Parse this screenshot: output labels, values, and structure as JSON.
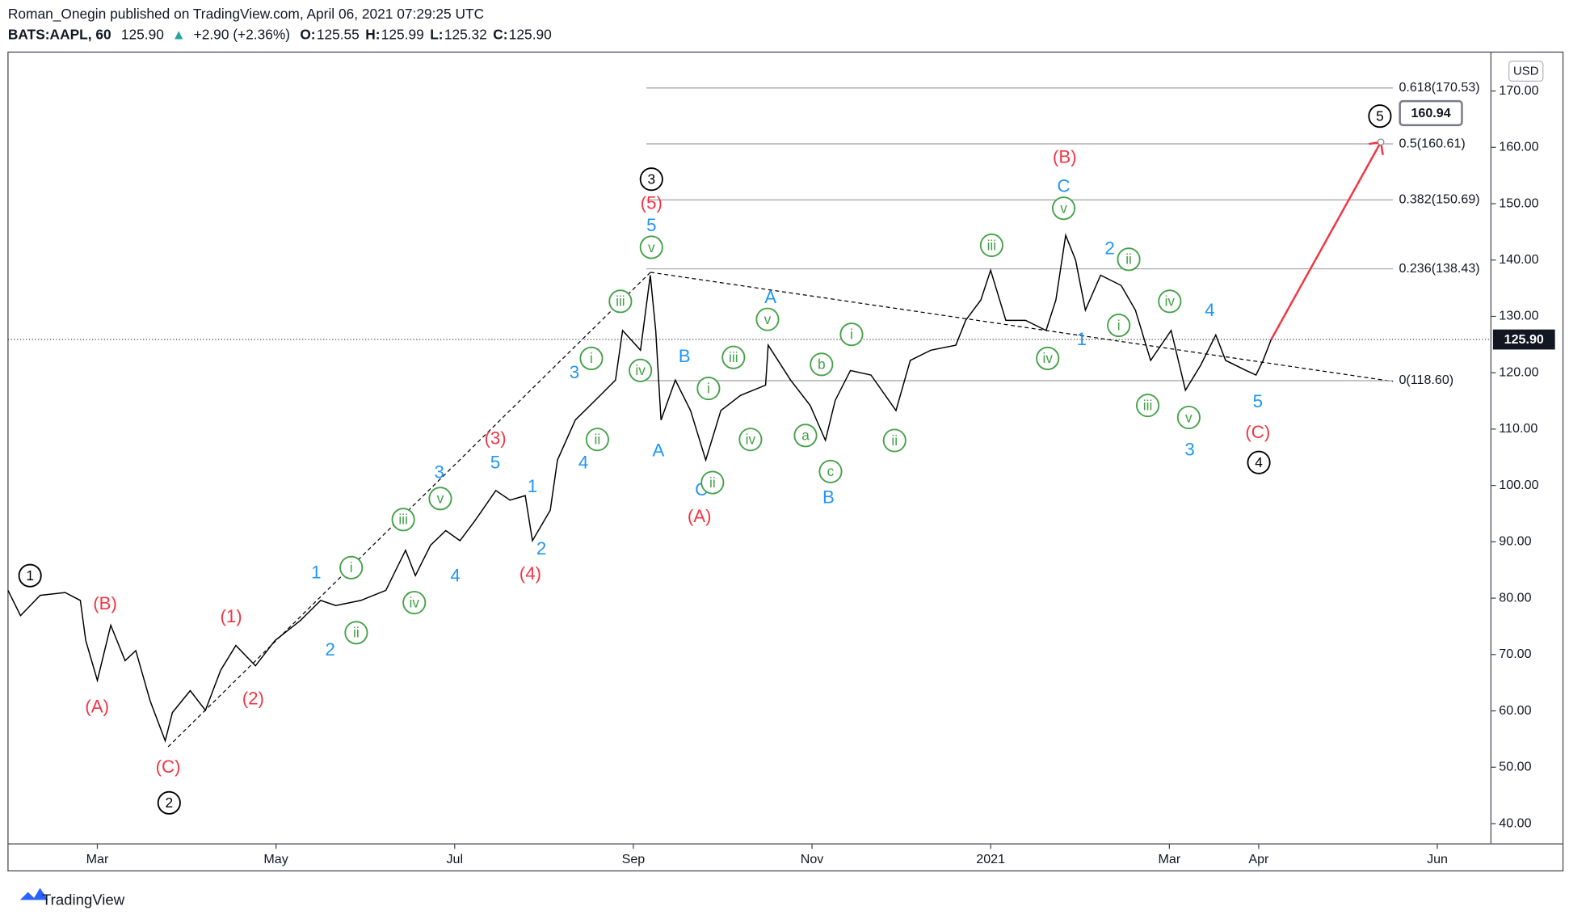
{
  "header": {
    "author_line": "Roman_Onegin published on TradingView.com, April 06, 2021 07:29:25 UTC",
    "symbol": "BATS:AAPL, 60",
    "price": "125.90",
    "change_arrow": "▲",
    "change": "+2.90 (+2.36%)",
    "ohlc": [
      {
        "label": "O:",
        "value": "125.55"
      },
      {
        "label": "H:",
        "value": "125.99"
      },
      {
        "label": "L:",
        "value": "125.32"
      },
      {
        "label": "C:",
        "value": "125.90"
      }
    ],
    "logo": "TradingView"
  },
  "chart_data": {
    "type": "line",
    "color": "#000000",
    "currency": "USD",
    "x": [
      1.0,
      1.14,
      1.36,
      1.64,
      1.81,
      1.87,
      2.0,
      2.15,
      2.31,
      2.43,
      2.59,
      2.76,
      2.84,
      3.04,
      3.21,
      3.38,
      3.55,
      3.77,
      3.99,
      4.27,
      4.5,
      4.67,
      4.95,
      5.23,
      5.45,
      5.56,
      5.73,
      5.9,
      6.06,
      6.23,
      6.46,
      6.62,
      6.79,
      6.87,
      7.07,
      7.15,
      7.35,
      7.63,
      7.8,
      7.88,
      8.08,
      8.19,
      8.25,
      8.31,
      8.47,
      8.64,
      8.81,
      8.98,
      9.2,
      9.48,
      9.51,
      9.76,
      9.98,
      10.15,
      10.26,
      10.43,
      10.66,
      10.94,
      11.1,
      11.33,
      11.61,
      11.72,
      11.89,
      12.0,
      12.17,
      12.39,
      12.62,
      12.73,
      12.84,
      12.95,
      13.06,
      13.23,
      13.46,
      13.62,
      13.79,
      14.02,
      14.18,
      14.35,
      14.52,
      14.63,
      14.86,
      14.97,
      15.05,
      15.14
    ],
    "values": [
      81.4,
      76.9,
      80.5,
      81.0,
      79.6,
      72.5,
      65.4,
      75.2,
      68.9,
      70.7,
      61.8,
      54.7,
      59.7,
      63.6,
      60.1,
      67.2,
      71.6,
      68.0,
      72.5,
      76.0,
      79.6,
      78.7,
      79.6,
      81.4,
      88.5,
      84.0,
      89.4,
      92.0,
      90.2,
      93.8,
      99.1,
      97.4,
      98.2,
      90.2,
      95.6,
      104.5,
      111.6,
      116.0,
      118.7,
      127.5,
      124.0,
      137.3,
      127.5,
      111.6,
      118.7,
      113.3,
      104.5,
      113.3,
      116.0,
      117.8,
      124.9,
      118.7,
      114.2,
      108.0,
      115.1,
      120.4,
      119.6,
      113.3,
      122.2,
      124.0,
      124.9,
      129.3,
      132.9,
      138.2,
      129.3,
      129.3,
      127.5,
      132.9,
      144.4,
      140.0,
      131.1,
      137.3,
      135.5,
      131.1,
      122.2,
      127.5,
      116.9,
      121.3,
      126.7,
      122.2,
      120.4,
      119.6,
      122.2,
      125.9
    ],
    "xlim": [
      1.0,
      17.6
    ],
    "ylim": [
      36.4,
      176.9
    ],
    "xticks": [
      {
        "value": 2,
        "label": "Mar"
      },
      {
        "value": 4,
        "label": "May"
      },
      {
        "value": 6,
        "label": "Jul"
      },
      {
        "value": 8,
        "label": "Sep"
      },
      {
        "value": 10,
        "label": "Nov"
      },
      {
        "value": 12,
        "label": "2021"
      },
      {
        "value": 14,
        "label": "Mar"
      },
      {
        "value": 15,
        "label": "Apr"
      },
      {
        "value": 17,
        "label": "Jun"
      }
    ],
    "yticks": [
      {
        "value": 40,
        "label": "40.00"
      },
      {
        "value": 50,
        "label": "50.00"
      },
      {
        "value": 60,
        "label": "60.00"
      },
      {
        "value": 70,
        "label": "70.00"
      },
      {
        "value": 80,
        "label": "80.00"
      },
      {
        "value": 90,
        "label": "90.00"
      },
      {
        "value": 100,
        "label": "100.00"
      },
      {
        "value": 110,
        "label": "110.00"
      },
      {
        "value": 120,
        "label": "120.00"
      },
      {
        "value": 130,
        "label": "130.00"
      },
      {
        "value": 140,
        "label": "140.00"
      },
      {
        "value": 150,
        "label": "150.00"
      },
      {
        "value": 160,
        "label": "160.00"
      },
      {
        "value": 170,
        "label": "170.00"
      }
    ],
    "last_price": {
      "value": 125.9,
      "label": "125.90"
    },
    "target": {
      "value": 160.94,
      "label": "160.94"
    },
    "fib_levels": [
      {
        "value": 170.53,
        "label": "0.618(170.53)"
      },
      {
        "value": 160.61,
        "label": "0.5(160.61)"
      },
      {
        "value": 150.69,
        "label": "0.382(150.69)"
      },
      {
        "value": 138.43,
        "label": "0.236(138.43)"
      },
      {
        "value": 118.6,
        "label": "0(118.60)"
      }
    ],
    "wave_labels": [
      {
        "color": "#f23645",
        "circled": false,
        "labels": [
          "(B)",
          "(A)",
          "(C)",
          "(1)",
          "(2)",
          "(3)",
          "(4)",
          "(5)",
          "(A)",
          "(B)",
          "(C)"
        ]
      },
      {
        "color": "#2196f3",
        "circled": false,
        "labels": [
          "1",
          "2",
          "3",
          "5",
          "4",
          "1",
          "2",
          "3",
          "4",
          "5",
          "A",
          "B",
          "C",
          "A",
          "B",
          "C",
          "2",
          "1",
          "4",
          "3",
          "5"
        ]
      },
      {
        "color": "#43a047",
        "circled": true,
        "labels": [
          "i",
          "ii",
          "iii",
          "iv",
          "v",
          "i",
          "ii",
          "iii",
          "iv",
          "v",
          "i",
          "ii",
          "iii",
          "iv",
          "v",
          "a",
          "b",
          "c",
          "i",
          "ii",
          "iii",
          "iv",
          "v",
          "ii",
          "i",
          "iv",
          "iii",
          "v"
        ]
      },
      {
        "color": "#000000",
        "circled": true,
        "labels": [
          "1",
          "2",
          "3",
          "4",
          "5"
        ]
      }
    ]
  }
}
